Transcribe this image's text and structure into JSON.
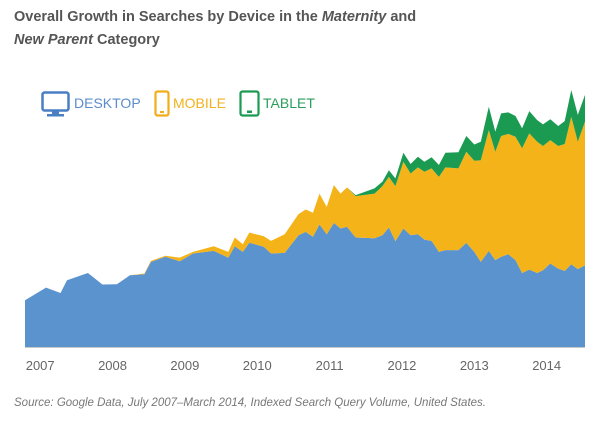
{
  "chart_data": {
    "type": "area",
    "stacked": true,
    "title_parts": [
      "Overall Growth in Searches by Device in the ",
      "Maternity",
      " and",
      "New Parent",
      " Category"
    ],
    "xlabel": "",
    "ylabel": "",
    "x_ticks": [
      "2007",
      "2008",
      "2009",
      "2010",
      "2011",
      "2012",
      "2013",
      "2014"
    ],
    "xlim": [
      2006.79,
      2014.53
    ],
    "ylim": [
      0,
      100
    ],
    "grid": false,
    "legend_position": "top-left",
    "x": [
      2006.79,
      2007.08,
      2007.28,
      2007.37,
      2007.66,
      2007.86,
      2008.06,
      2008.24,
      2008.44,
      2008.53,
      2008.73,
      2008.93,
      2009.11,
      2009.4,
      2009.6,
      2009.69,
      2009.8,
      2009.89,
      2010.09,
      2010.19,
      2010.38,
      2010.57,
      2010.67,
      2010.77,
      2010.86,
      2010.96,
      2011.06,
      2011.15,
      2011.24,
      2011.36,
      2011.62,
      2011.73,
      2011.82,
      2011.91,
      2012.02,
      2012.12,
      2012.22,
      2012.31,
      2012.41,
      2012.51,
      2012.6,
      2012.78,
      2012.89,
      2013.0,
      2013.09,
      2013.2,
      2013.29,
      2013.37,
      2013.47,
      2013.57,
      2013.66,
      2013.76,
      2013.87,
      2013.95,
      2014.05,
      2014.16,
      2014.25,
      2014.34,
      2014.43,
      2014.53
    ],
    "series": [
      {
        "name": "DESKTOP",
        "color": "#5b93cf",
        "icon": "desktop-monitor-icon",
        "values": [
          18.2,
          23.1,
          21.0,
          26.0,
          28.8,
          24.3,
          24.4,
          27.9,
          28.3,
          33.1,
          35.1,
          33.4,
          36.4,
          37.4,
          34.8,
          39.2,
          37.0,
          40.6,
          39.0,
          36.4,
          36.6,
          43.5,
          44.8,
          42.9,
          47.7,
          43.8,
          48.3,
          46.1,
          46.8,
          42.6,
          42.3,
          43.5,
          46.5,
          41.2,
          46.1,
          43.5,
          43.9,
          41.8,
          41.3,
          37.0,
          37.7,
          37.7,
          40.5,
          37.0,
          33.1,
          37.4,
          33.8,
          35.1,
          36.1,
          33.8,
          28.8,
          30.1,
          28.8,
          29.9,
          32.5,
          30.5,
          29.6,
          32.2,
          30.3,
          31.8
        ]
      },
      {
        "name": "MOBILE",
        "color": "#f3b319",
        "icon": "mobile-phone-icon",
        "values": [
          0,
          0,
          0,
          0,
          0,
          0,
          0,
          0,
          0.3,
          0.4,
          0.4,
          1.4,
          0.6,
          1.8,
          2.2,
          3.4,
          3.0,
          3.9,
          4.1,
          4.9,
          7.3,
          8.2,
          8.7,
          9.3,
          12.0,
          10.7,
          14.7,
          13.6,
          15.3,
          16.1,
          17.4,
          19.1,
          19.7,
          21.4,
          26.0,
          24.0,
          26.0,
          26.4,
          28.2,
          29.2,
          32.2,
          31.8,
          35.5,
          35.5,
          39.6,
          47.0,
          42.2,
          47.0,
          46.8,
          48.0,
          48.5,
          53.0,
          51.1,
          48.3,
          48.0,
          47.7,
          49.4,
          57.4,
          49.6,
          55.9
        ]
      },
      {
        "name": "TABLET",
        "color": "#1b9b52",
        "icon": "tablet-icon",
        "values": [
          0,
          0,
          0,
          0,
          0,
          0,
          0,
          0,
          0,
          0,
          0,
          0,
          0,
          0,
          0,
          0,
          0,
          0,
          0,
          0,
          0,
          0,
          0,
          0,
          0,
          0,
          0,
          0,
          0,
          0.4,
          2.0,
          1.7,
          2.6,
          3.0,
          3.5,
          3.7,
          4.1,
          3.9,
          4.3,
          4.6,
          5.7,
          6.3,
          6.1,
          6.3,
          7.2,
          9.1,
          7.8,
          8.8,
          8.4,
          8.1,
          7.8,
          8.7,
          8.4,
          8.4,
          8.1,
          7.8,
          8.9,
          10.4,
          10.4,
          10.4
        ]
      }
    ],
    "source": "Source: Google Data, July 2007–March 2014, Indexed Search Query Volume, United States."
  }
}
